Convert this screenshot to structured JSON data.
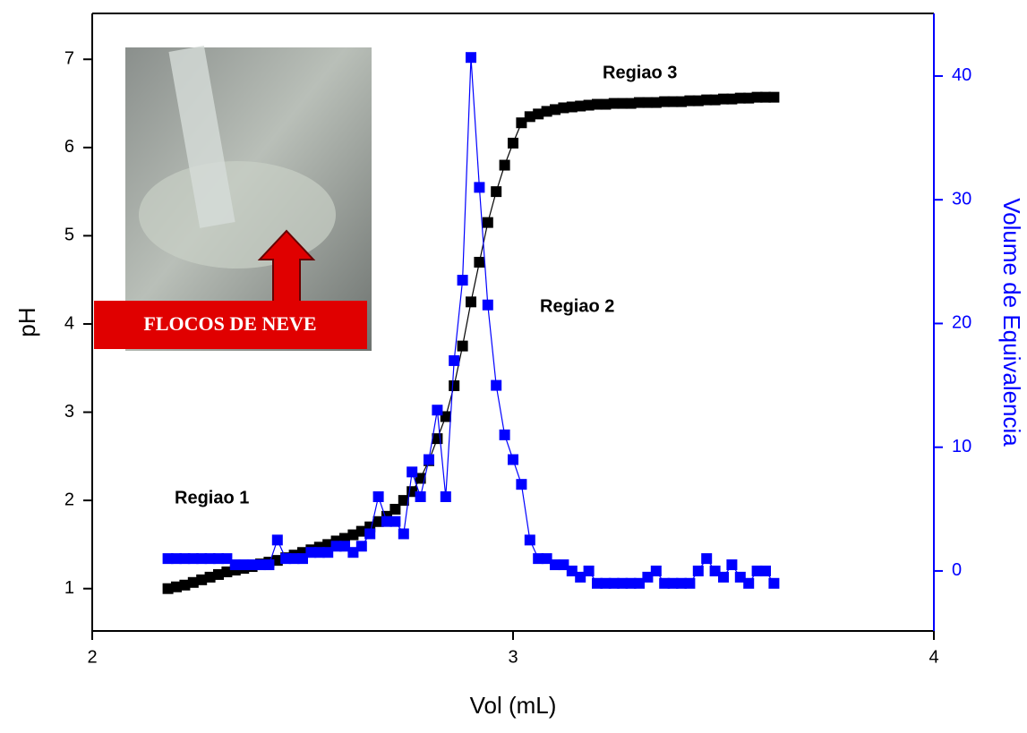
{
  "chart_data": {
    "type": "line",
    "xlabel": "Vol (mL)",
    "ylabel": "pH",
    "y2label": "Volume de Equivalencia",
    "annotations": [
      "Regiao 1",
      "Regiao 2",
      "Regiao 3"
    ],
    "inset_label": "FLOCOS DE NEVE",
    "xlim": [
      2,
      4
    ],
    "xticks": [
      2,
      3,
      4
    ],
    "ylim": [
      0.52,
      7.52
    ],
    "yticks": [
      1,
      2,
      3,
      4,
      5,
      6,
      7
    ],
    "y2lim": [
      -4.85,
      45.06
    ],
    "y2ticks": [
      0,
      10,
      20,
      30,
      40
    ],
    "marker": "square",
    "x": [
      2.18,
      2.2,
      2.22,
      2.24,
      2.26,
      2.28,
      2.3,
      2.32,
      2.34,
      2.36,
      2.38,
      2.4,
      2.42,
      2.44,
      2.46,
      2.48,
      2.5,
      2.52,
      2.54,
      2.56,
      2.58,
      2.6,
      2.62,
      2.64,
      2.66,
      2.68,
      2.7,
      2.72,
      2.74,
      2.76,
      2.78,
      2.8,
      2.82,
      2.84,
      2.86,
      2.88,
      2.9,
      2.92,
      2.94,
      2.96,
      2.98,
      3.0,
      3.02,
      3.04,
      3.06,
      3.08,
      3.1,
      3.12,
      3.14,
      3.16,
      3.18,
      3.2,
      3.22,
      3.24,
      3.26,
      3.28,
      3.3,
      3.32,
      3.34,
      3.36,
      3.38,
      3.4,
      3.42,
      3.44,
      3.46,
      3.48,
      3.5,
      3.52,
      3.54,
      3.56,
      3.58,
      3.6,
      3.62
    ],
    "series": [
      {
        "color": "#000000",
        "axis": "y",
        "values": [
          1.0,
          1.02,
          1.04,
          1.07,
          1.1,
          1.13,
          1.16,
          1.19,
          1.21,
          1.23,
          1.25,
          1.28,
          1.3,
          1.32,
          1.35,
          1.38,
          1.41,
          1.44,
          1.47,
          1.5,
          1.54,
          1.57,
          1.61,
          1.65,
          1.7,
          1.76,
          1.82,
          1.9,
          2.0,
          2.1,
          2.25,
          2.45,
          2.7,
          2.95,
          3.3,
          3.75,
          4.25,
          4.7,
          5.15,
          5.5,
          5.8,
          6.05,
          6.28,
          6.35,
          6.38,
          6.41,
          6.43,
          6.45,
          6.46,
          6.47,
          6.48,
          6.49,
          6.49,
          6.5,
          6.5,
          6.5,
          6.51,
          6.51,
          6.51,
          6.52,
          6.52,
          6.52,
          6.53,
          6.53,
          6.54,
          6.54,
          6.55,
          6.55,
          6.56,
          6.56,
          6.57,
          6.57,
          6.57
        ]
      },
      {
        "color": "#0000ff",
        "axis": "y2",
        "values": [
          1,
          1,
          1,
          1,
          1,
          1,
          1,
          1,
          0.5,
          0.5,
          0.5,
          0.5,
          0.5,
          2.5,
          1,
          1,
          1,
          1.5,
          1.5,
          1.5,
          2,
          2,
          1.5,
          2,
          3,
          6,
          4,
          4,
          3,
          8,
          6,
          9,
          13,
          6,
          17,
          23.5,
          41.5,
          31,
          21.5,
          15,
          11,
          9,
          7,
          2.5,
          1,
          1,
          0.5,
          0.5,
          0,
          -0.5,
          0,
          -1,
          -1,
          -1,
          -1,
          -1,
          -1,
          -0.5,
          0,
          -1,
          -1,
          -1,
          -1,
          0,
          1,
          0,
          -0.5,
          0.5,
          -0.5,
          -1,
          0,
          0,
          -1
        ]
      }
    ]
  }
}
